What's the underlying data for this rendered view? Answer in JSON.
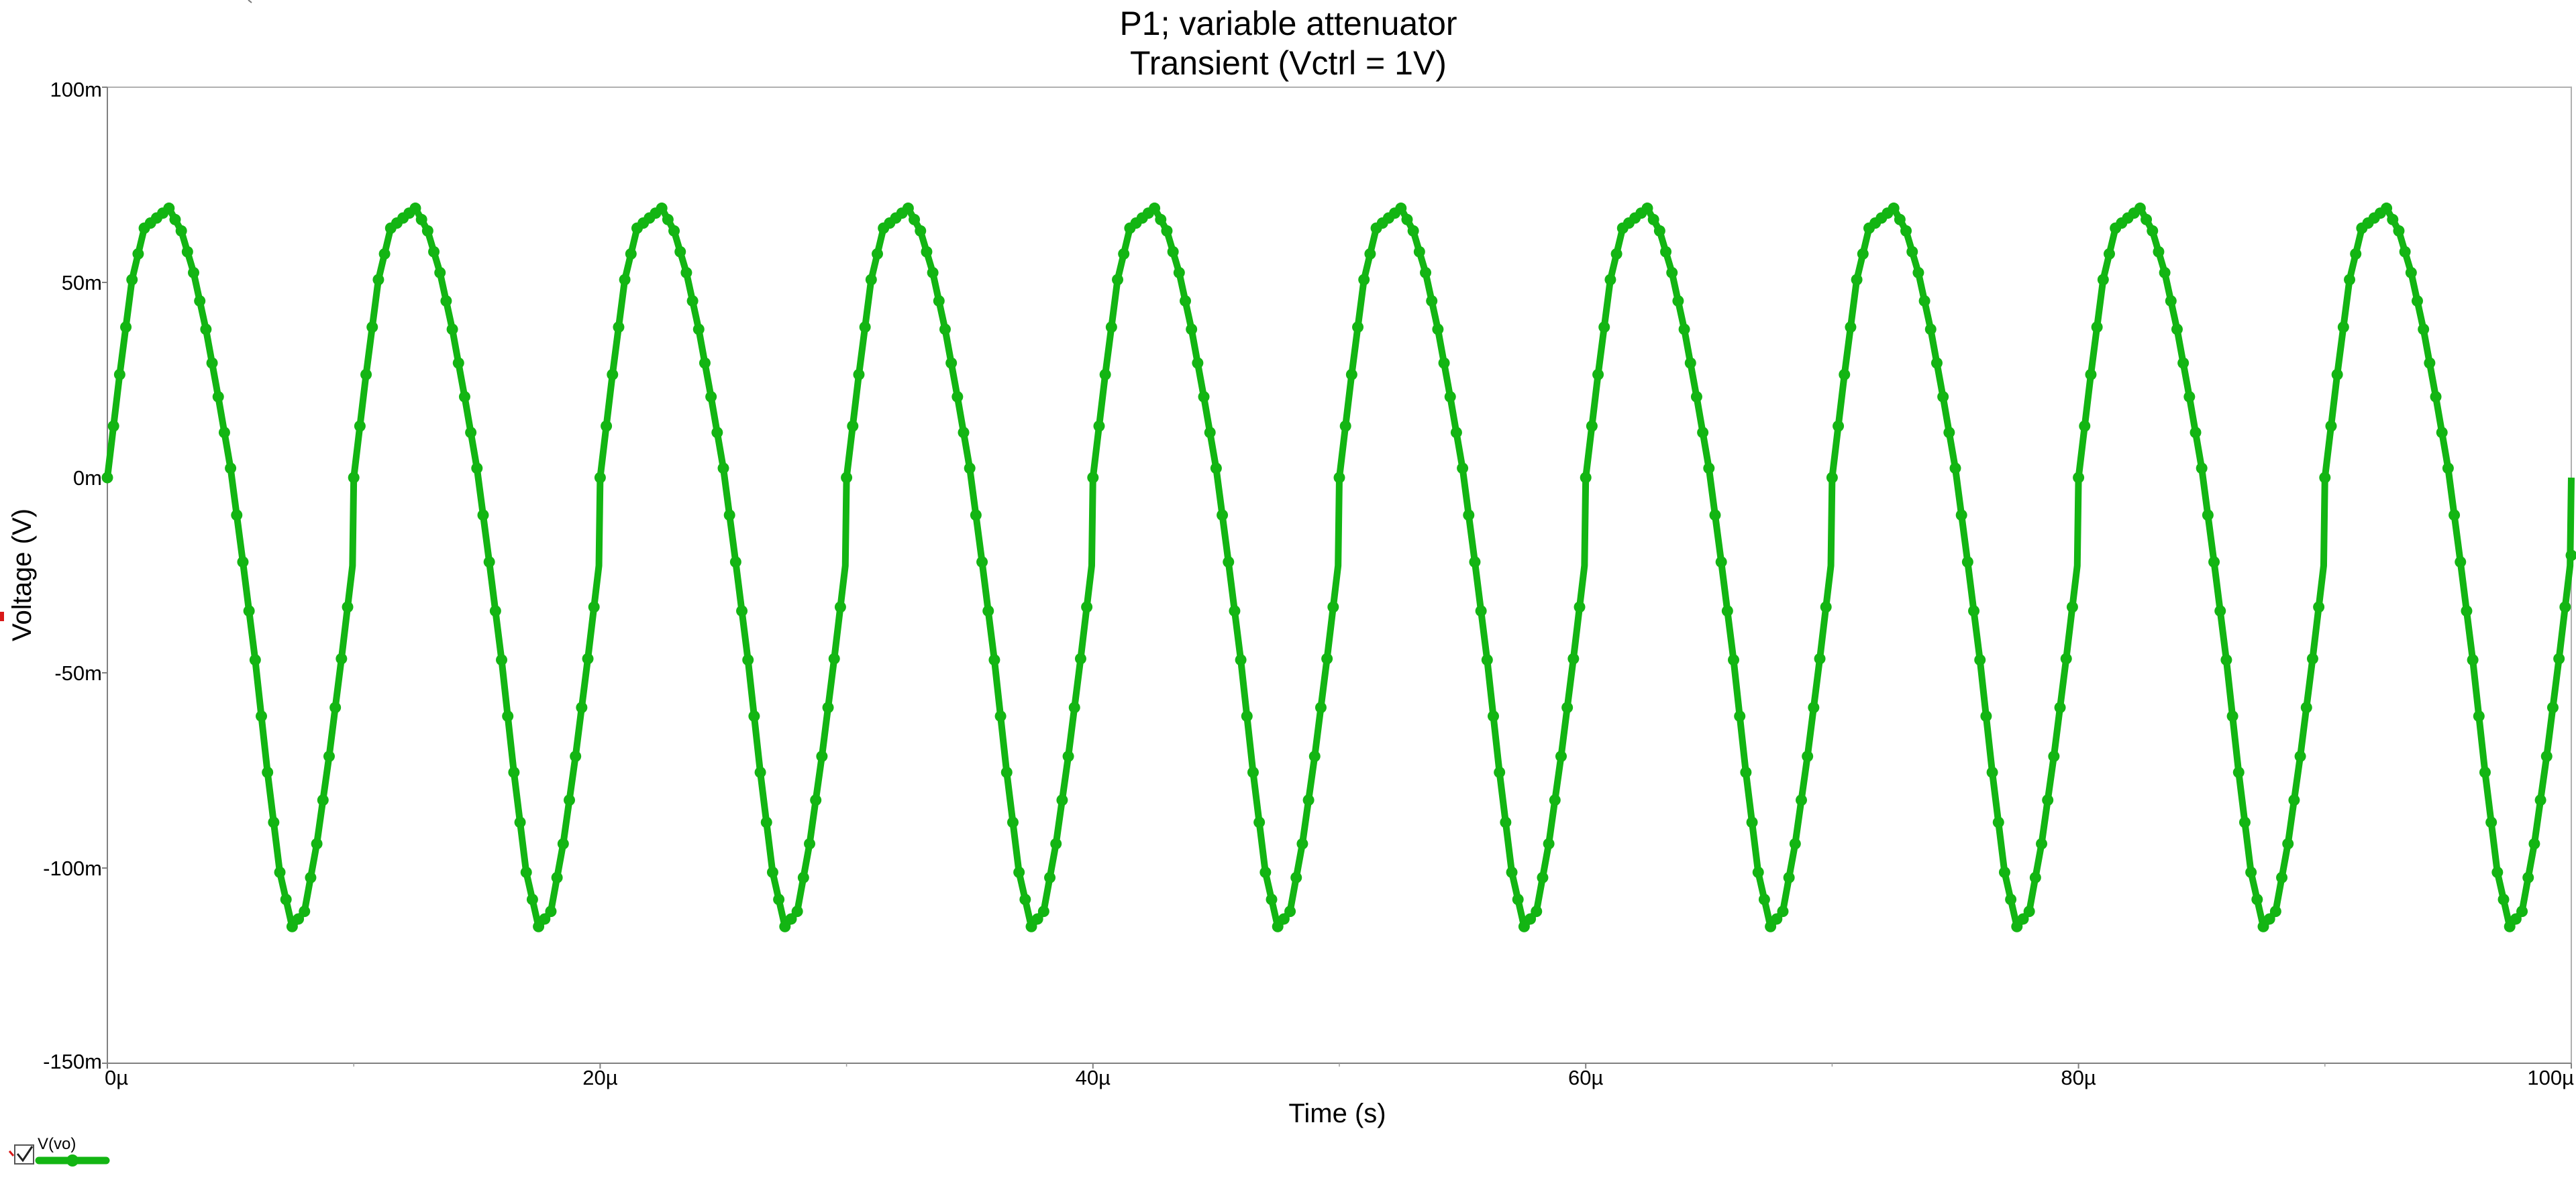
{
  "chart_data": {
    "type": "line",
    "title": "P1; variable attenuator",
    "subtitle": "Transient (Vctrl = 1V)",
    "xlabel": "Time (s)",
    "ylabel": "Voltage (V)",
    "xlim": [
      0,
      100
    ],
    "ylim": [
      -150,
      100
    ],
    "x_unit": "µs",
    "y_unit": "mV",
    "x_ticks": [
      {
        "value": 0,
        "label": "0µ"
      },
      {
        "value": 20,
        "label": "20µ"
      },
      {
        "value": 40,
        "label": "40µ"
      },
      {
        "value": 60,
        "label": "60µ"
      },
      {
        "value": 80,
        "label": "80µ"
      },
      {
        "value": 100,
        "label": "100µ"
      }
    ],
    "y_ticks": [
      {
        "value": 100,
        "label": "100m"
      },
      {
        "value": 50,
        "label": "50m"
      },
      {
        "value": 0,
        "label": "0m"
      },
      {
        "value": -50,
        "label": "-50m"
      },
      {
        "value": -100,
        "label": "-100m"
      },
      {
        "value": -150,
        "label": "-150m"
      }
    ],
    "grid": false,
    "legend": {
      "placement": "bottom-left",
      "entries": [
        {
          "label": "V(vo)",
          "checked": true
        }
      ]
    },
    "series": [
      {
        "name": "V(vo)",
        "color": "#13b513",
        "marker": "circle",
        "waveform": {
          "shape": "sine",
          "period_us": 10,
          "offset_mV": -23,
          "amplitude_mV": 92,
          "phase_start_us": 0
        },
        "x": [
          0,
          0.5,
          1,
          1.5,
          2,
          2.5,
          3,
          3.5,
          4,
          4.5,
          5,
          5.5,
          6,
          6.5,
          7,
          7.5,
          8,
          8.5,
          9,
          9.5,
          10
        ],
        "values": [
          0,
          26.4,
          50.7,
          63.9,
          66.5,
          69.0,
          63.2,
          52.5,
          38.0,
          20.7,
          2.4,
          -21.6,
          -46.7,
          -75.5,
          -101.1,
          -115.0,
          -111.1,
          -93.8,
          -71.4,
          -46.4,
          -19.9
        ]
      }
    ]
  }
}
